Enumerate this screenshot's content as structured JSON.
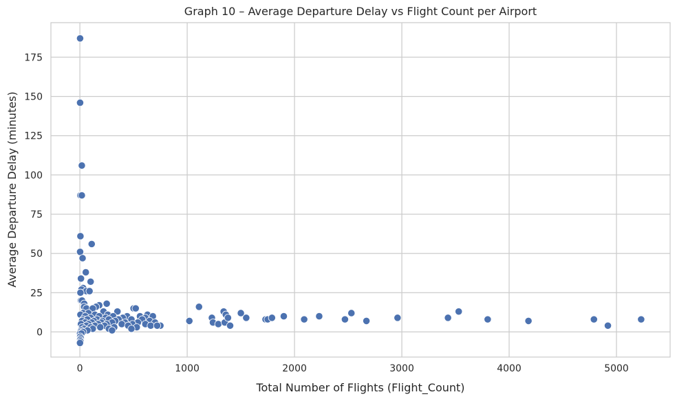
{
  "chart_data": {
    "type": "scatter",
    "title": "Graph 10 – Average Departure Delay vs Flight Count per Airport",
    "xlabel": "Total Number of Flights (Flight_Count)",
    "ylabel": "Average Departure Delay (minutes)",
    "xlim": [
      -270,
      5500
    ],
    "ylim": [
      -16,
      197
    ],
    "xticks": [
      0,
      1000,
      2000,
      3000,
      4000,
      5000
    ],
    "xtick_labels": [
      "0",
      "1000",
      "2000",
      "3000",
      "4000",
      "5000"
    ],
    "yticks": [
      0,
      25,
      50,
      75,
      100,
      125,
      150,
      175
    ],
    "ytick_labels": [
      "0",
      "25",
      "50",
      "75",
      "100",
      "125",
      "150",
      "175"
    ],
    "grid": true,
    "marker_color": "#4c72b0",
    "marker_edge_color": "#ffffff",
    "background_color": "#ffffff",
    "grid_color": "#cccccc",
    "points": [
      {
        "x": 2,
        "y": 187
      },
      {
        "x": 2,
        "y": 146
      },
      {
        "x": 18,
        "y": 106
      },
      {
        "x": 5,
        "y": 87
      },
      {
        "x": 18,
        "y": 87
      },
      {
        "x": 5,
        "y": 61
      },
      {
        "x": 110,
        "y": 56
      },
      {
        "x": 2,
        "y": 51
      },
      {
        "x": 25,
        "y": 47
      },
      {
        "x": 55,
        "y": 38
      },
      {
        "x": 10,
        "y": 34
      },
      {
        "x": 100,
        "y": 32
      },
      {
        "x": 30,
        "y": 28
      },
      {
        "x": 15,
        "y": 27
      },
      {
        "x": 60,
        "y": 26
      },
      {
        "x": 90,
        "y": 26
      },
      {
        "x": 5,
        "y": 25
      },
      {
        "x": 10,
        "y": 20
      },
      {
        "x": 20,
        "y": 20
      },
      {
        "x": 40,
        "y": 18
      },
      {
        "x": 250,
        "y": 18
      },
      {
        "x": 180,
        "y": 17
      },
      {
        "x": 40,
        "y": 16
      },
      {
        "x": 150,
        "y": 16
      },
      {
        "x": 60,
        "y": 15
      },
      {
        "x": 120,
        "y": 15
      },
      {
        "x": 500,
        "y": 15
      },
      {
        "x": 520,
        "y": 15
      },
      {
        "x": 220,
        "y": 13
      },
      {
        "x": 350,
        "y": 13
      },
      {
        "x": 30,
        "y": 12
      },
      {
        "x": 80,
        "y": 12
      },
      {
        "x": 5,
        "y": 11
      },
      {
        "x": 140,
        "y": 11
      },
      {
        "x": 260,
        "y": 11
      },
      {
        "x": 630,
        "y": 11
      },
      {
        "x": 50,
        "y": 10
      },
      {
        "x": 180,
        "y": 10
      },
      {
        "x": 310,
        "y": 10
      },
      {
        "x": 440,
        "y": 10
      },
      {
        "x": 560,
        "y": 10
      },
      {
        "x": 680,
        "y": 10
      },
      {
        "x": 100,
        "y": 9
      },
      {
        "x": 240,
        "y": 9
      },
      {
        "x": 400,
        "y": 9
      },
      {
        "x": 610,
        "y": 9
      },
      {
        "x": 30,
        "y": 8
      },
      {
        "x": 70,
        "y": 8
      },
      {
        "x": 160,
        "y": 8
      },
      {
        "x": 270,
        "y": 8
      },
      {
        "x": 360,
        "y": 8
      },
      {
        "x": 480,
        "y": 8
      },
      {
        "x": 580,
        "y": 8
      },
      {
        "x": 20,
        "y": 7
      },
      {
        "x": 130,
        "y": 7
      },
      {
        "x": 210,
        "y": 7
      },
      {
        "x": 330,
        "y": 7
      },
      {
        "x": 650,
        "y": 7
      },
      {
        "x": 50,
        "y": 6
      },
      {
        "x": 110,
        "y": 6
      },
      {
        "x": 200,
        "y": 6
      },
      {
        "x": 300,
        "y": 6
      },
      {
        "x": 420,
        "y": 6
      },
      {
        "x": 540,
        "y": 6
      },
      {
        "x": 700,
        "y": 6
      },
      {
        "x": 10,
        "y": 5
      },
      {
        "x": 80,
        "y": 5
      },
      {
        "x": 170,
        "y": 5
      },
      {
        "x": 250,
        "y": 5
      },
      {
        "x": 390,
        "y": 5
      },
      {
        "x": 490,
        "y": 5
      },
      {
        "x": 610,
        "y": 5
      },
      {
        "x": 60,
        "y": 4
      },
      {
        "x": 140,
        "y": 4
      },
      {
        "x": 230,
        "y": 4
      },
      {
        "x": 450,
        "y": 4
      },
      {
        "x": 660,
        "y": 4
      },
      {
        "x": 750,
        "y": 4
      },
      {
        "x": 20,
        "y": 3
      },
      {
        "x": 100,
        "y": 3
      },
      {
        "x": 190,
        "y": 3
      },
      {
        "x": 320,
        "y": 3
      },
      {
        "x": 530,
        "y": 3
      },
      {
        "x": 720,
        "y": 4
      },
      {
        "x": 40,
        "y": 2
      },
      {
        "x": 120,
        "y": 2
      },
      {
        "x": 270,
        "y": 2
      },
      {
        "x": 480,
        "y": 2
      },
      {
        "x": 10,
        "y": 1
      },
      {
        "x": 70,
        "y": 1
      },
      {
        "x": 300,
        "y": 1
      },
      {
        "x": 5,
        "y": 0
      },
      {
        "x": 30,
        "y": 0
      },
      {
        "x": 2,
        "y": -1
      },
      {
        "x": 15,
        "y": -1
      },
      {
        "x": 3,
        "y": -3
      },
      {
        "x": 8,
        "y": -4
      },
      {
        "x": 2,
        "y": -5
      },
      {
        "x": 5,
        "y": -6
      },
      {
        "x": 1,
        "y": -7
      },
      {
        "x": 1020,
        "y": 7
      },
      {
        "x": 1110,
        "y": 16
      },
      {
        "x": 1230,
        "y": 9
      },
      {
        "x": 1240,
        "y": 6
      },
      {
        "x": 1290,
        "y": 5
      },
      {
        "x": 1340,
        "y": 13
      },
      {
        "x": 1350,
        "y": 6
      },
      {
        "x": 1360,
        "y": 11
      },
      {
        "x": 1380,
        "y": 9
      },
      {
        "x": 1400,
        "y": 4
      },
      {
        "x": 1500,
        "y": 12
      },
      {
        "x": 1550,
        "y": 9
      },
      {
        "x": 1730,
        "y": 8
      },
      {
        "x": 1750,
        "y": 8
      },
      {
        "x": 1790,
        "y": 9
      },
      {
        "x": 1900,
        "y": 10
      },
      {
        "x": 2090,
        "y": 8
      },
      {
        "x": 2230,
        "y": 10
      },
      {
        "x": 2470,
        "y": 8
      },
      {
        "x": 2530,
        "y": 12
      },
      {
        "x": 2670,
        "y": 7
      },
      {
        "x": 2960,
        "y": 9
      },
      {
        "x": 3430,
        "y": 9
      },
      {
        "x": 3530,
        "y": 13
      },
      {
        "x": 3800,
        "y": 8
      },
      {
        "x": 4180,
        "y": 7
      },
      {
        "x": 4790,
        "y": 8
      },
      {
        "x": 4920,
        "y": 4
      },
      {
        "x": 5230,
        "y": 8
      }
    ]
  }
}
